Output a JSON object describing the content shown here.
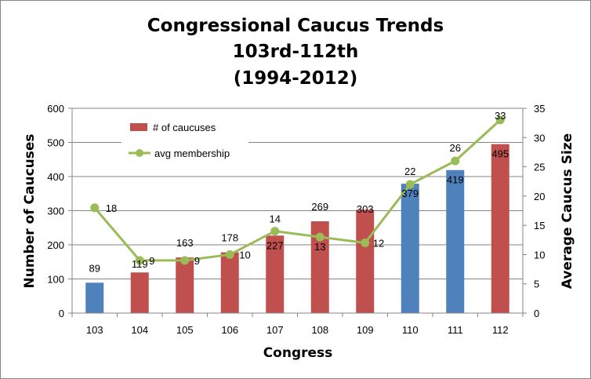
{
  "chart_data": {
    "type": "bar",
    "title": [
      "Congressional Caucus Trends",
      "103rd-112th",
      "(1994-2012)"
    ],
    "xlabel": "Congress",
    "ylabel": "Number of Caucuses",
    "y2label": "Average Caucus Size",
    "categories": [
      "103",
      "104",
      "105",
      "106",
      "107",
      "108",
      "109",
      "110",
      "111",
      "112"
    ],
    "ylim": [
      0,
      600
    ],
    "yticks": [
      "0",
      "100",
      "200",
      "300",
      "400",
      "500",
      "600"
    ],
    "y2lim": [
      0,
      35
    ],
    "y2ticks": [
      "0",
      "5",
      "10",
      "15",
      "20",
      "25",
      "30",
      "35"
    ],
    "grid": "horizontal",
    "legend_position": "upper-left inside plot",
    "series": [
      {
        "name": "# of caucuses",
        "kind": "bar",
        "axis": "left",
        "values": [
          89,
          119,
          163,
          178,
          227,
          269,
          303,
          379,
          419,
          495
        ],
        "colors": [
          "#4F81BD",
          "#C0504D",
          "#C0504D",
          "#C0504D",
          "#C0504D",
          "#C0504D",
          "#C0504D",
          "#4F81BD",
          "#4F81BD",
          "#C0504D"
        ]
      },
      {
        "name": "avg membership",
        "kind": "line",
        "axis": "right",
        "color": "#9BBB59",
        "values": [
          18,
          9,
          9,
          10,
          14,
          13,
          12,
          22,
          26,
          33
        ]
      }
    ]
  }
}
